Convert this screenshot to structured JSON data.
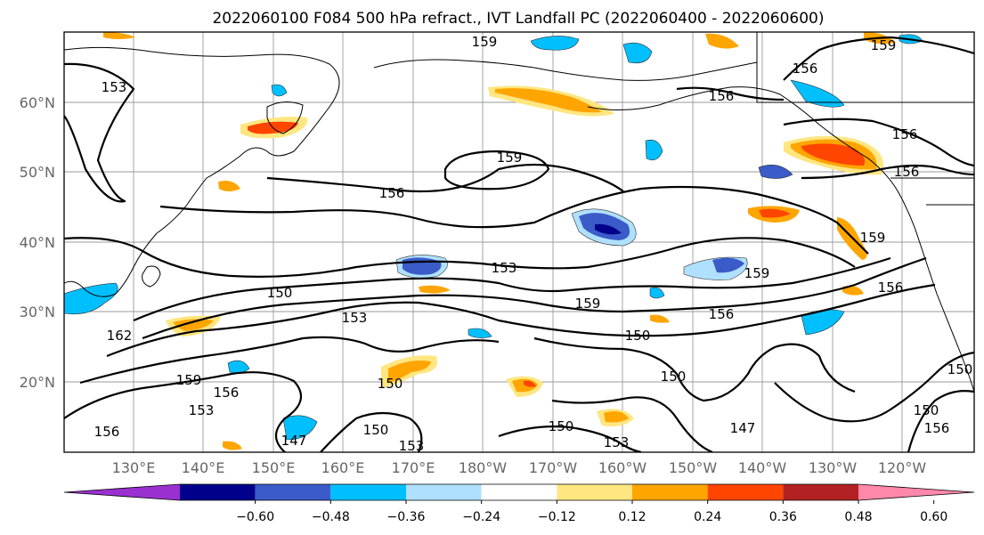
{
  "figure": {
    "title": "2022060100 F084 500 hPa refract., IVT Landfall PC (2022060400 - 2022060600)"
  },
  "map": {
    "lat_labels": [
      "60°N",
      "50°N",
      "40°N",
      "30°N",
      "20°N"
    ],
    "lon_labels": [
      "130°E",
      "140°E",
      "150°E",
      "160°E",
      "170°E",
      "180°W",
      "170°W",
      "160°W",
      "150°W",
      "140°W",
      "130°W",
      "120°W"
    ],
    "contour_labels": [
      "153",
      "159",
      "159",
      "156",
      "156",
      "156",
      "159",
      "156",
      "156",
      "153",
      "159",
      "159",
      "159",
      "156",
      "150",
      "153",
      "162",
      "159",
      "153",
      "156",
      "150",
      "150",
      "150",
      "147",
      "147",
      "150",
      "153",
      "150",
      "150",
      "156",
      "150",
      "156",
      "153",
      "156"
    ]
  },
  "colorbar": {
    "colors": [
      "#9b30d0",
      "#00008b",
      "#3a5bc8",
      "#00bfff",
      "#b0e0ff",
      "#ffffff",
      "#ffe680",
      "#ffa500",
      "#ff4500",
      "#b22222",
      "#ff88aa"
    ],
    "tick_labels": [
      "−0.60",
      "−0.48",
      "−0.36",
      "−0.24",
      "−0.12",
      "0.12",
      "0.24",
      "0.36",
      "0.48",
      "0.60"
    ]
  }
}
